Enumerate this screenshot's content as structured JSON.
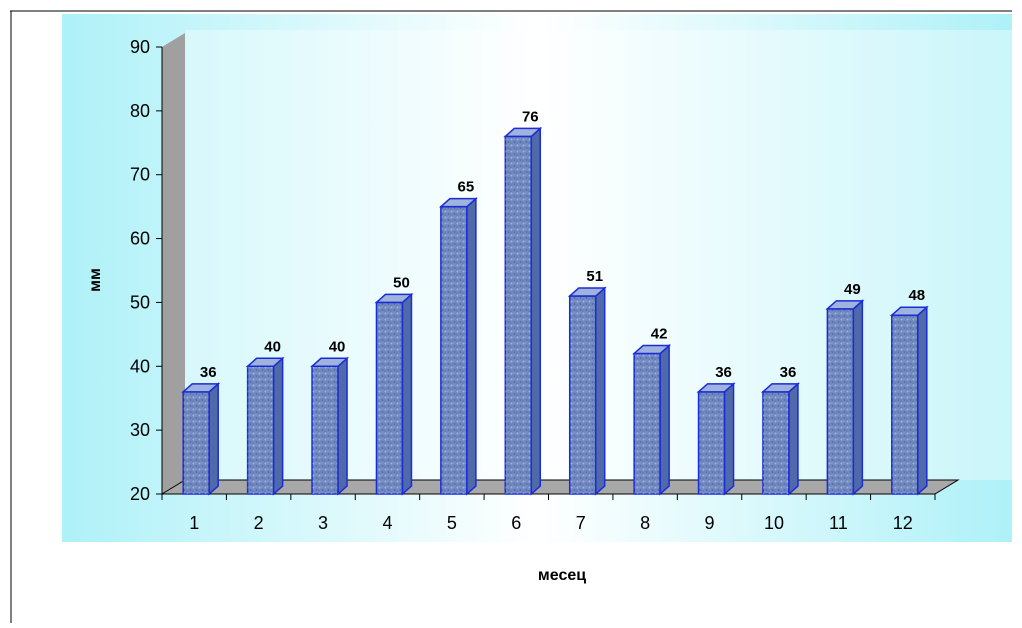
{
  "chart_data": {
    "type": "bar",
    "categories": [
      "1",
      "2",
      "3",
      "4",
      "5",
      "6",
      "7",
      "8",
      "9",
      "10",
      "11",
      "12"
    ],
    "values": [
      36,
      40,
      40,
      50,
      65,
      76,
      51,
      42,
      36,
      36,
      49,
      48
    ],
    "data_labels": [
      "36",
      "40",
      "40",
      "50",
      "65",
      "76",
      "51",
      "42",
      "36",
      "36",
      "49",
      "48"
    ],
    "xlabel": "месец",
    "ylabel": "мм",
    "ylim": [
      20,
      90
    ],
    "yticks": [
      "20",
      "30",
      "40",
      "50",
      "60",
      "70",
      "80",
      "90"
    ],
    "grid": false,
    "three_d": true
  },
  "colors": {
    "plot_background_start": "#aef1f8",
    "plot_background_mid": "#ffffff",
    "bar_front": "#7089c0",
    "bar_side": "#5069a8",
    "bar_top": "#9fb3dc",
    "bar_edge": "#1a2bd8",
    "wall_side": "#a0a0a0",
    "floor": "#a8a8a8"
  }
}
